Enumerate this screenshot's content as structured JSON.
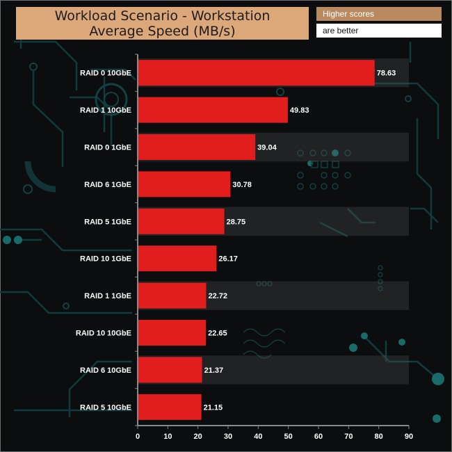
{
  "header": {
    "title_line1": "Workload Scenario - Workstation",
    "title_line2": "Average Speed (MB/s)",
    "badge_line1": "Higher scores",
    "badge_line2": "are better"
  },
  "colors": {
    "bar": "#e21d1d",
    "title_bg": "#dca87a",
    "badge_bg": "#b98a60",
    "text": "#ffffff"
  },
  "chart_data": {
    "type": "bar",
    "orientation": "horizontal",
    "title": "Workload Scenario - Workstation Average Speed (MB/s)",
    "xlabel": "",
    "ylabel": "",
    "xlim": [
      0,
      90
    ],
    "xticks": [
      0,
      10,
      20,
      30,
      40,
      50,
      60,
      70,
      80,
      90
    ],
    "categories": [
      "RAID 0 10GbE",
      "RAID 1 10GbE",
      "RAID 0 1GbE",
      "RAID 6 1GbE",
      "RAID 5 1GbE",
      "RAID 10 1GbE",
      "RAID 1 1GbE",
      "RAID 10 10GbE",
      "RAID 6 10GbE",
      "RAID 5 10GbE"
    ],
    "values": [
      78.63,
      49.83,
      39.04,
      30.78,
      28.75,
      26.17,
      22.72,
      22.65,
      21.37,
      21.15
    ],
    "value_labels": [
      "78.63",
      "49.83",
      "39.04",
      "30.78",
      "28.75",
      "26.17",
      "22.72",
      "22.65",
      "21.37",
      "21.15"
    ]
  }
}
